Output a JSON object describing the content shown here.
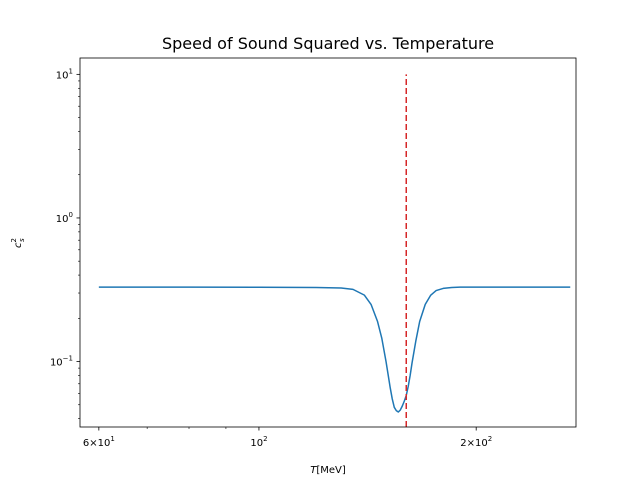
{
  "chart_data": {
    "type": "line",
    "title": "Speed of Sound Squared vs. Temperature",
    "xlabel": {
      "var": "T",
      "units": "[MeV]"
    },
    "ylabel": {
      "base": "c",
      "sub": "s",
      "sup": "2"
    },
    "xscale": "log",
    "yscale": "log",
    "xlim": [
      56.5,
      275
    ],
    "ylim": [
      0.035,
      13
    ],
    "xticks": [
      {
        "value": 60,
        "coef": "6",
        "times": "×",
        "base": "10",
        "exp": "1"
      },
      {
        "value": 100,
        "coef": "",
        "times": "",
        "base": "10",
        "exp": "2"
      },
      {
        "value": 200,
        "coef": "2",
        "times": "×",
        "base": "10",
        "exp": "2"
      }
    ],
    "yticks": [
      {
        "value": 0.1,
        "base": "10",
        "exp": "−1"
      },
      {
        "value": 1,
        "base": "10",
        "exp": "0"
      },
      {
        "value": 10,
        "base": "10",
        "exp": "1"
      }
    ],
    "series": [
      {
        "color": "#1f77b4",
        "style": "solid",
        "x": [
          60,
          80,
          100,
          120,
          130,
          135,
          140,
          143,
          146,
          148,
          150,
          152,
          153,
          154,
          155,
          156,
          157,
          158,
          159,
          160,
          161,
          162,
          163,
          165,
          167,
          170,
          173,
          176,
          180,
          185,
          190,
          200,
          220,
          250,
          270
        ],
        "y": [
          0.33,
          0.33,
          0.329,
          0.328,
          0.325,
          0.318,
          0.29,
          0.25,
          0.19,
          0.145,
          0.1,
          0.066,
          0.055,
          0.048,
          0.0455,
          0.0445,
          0.046,
          0.049,
          0.053,
          0.058,
          0.067,
          0.08,
          0.098,
          0.14,
          0.19,
          0.25,
          0.29,
          0.312,
          0.323,
          0.328,
          0.33,
          0.33,
          0.33,
          0.33,
          0.33
        ]
      },
      {
        "color": "#d62728",
        "style": "dashed",
        "x": [
          160,
          160
        ],
        "y": [
          0.035,
          10
        ]
      }
    ],
    "grid": false,
    "legend": "none"
  }
}
